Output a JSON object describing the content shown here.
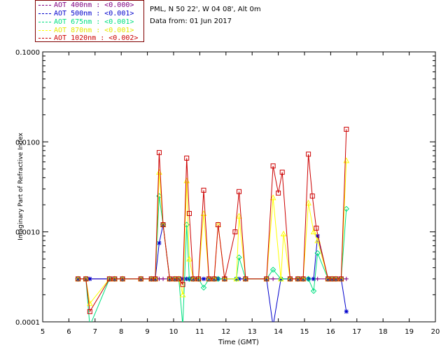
{
  "info": {
    "site": "PML, N 50 22', W 04 08', Alt 0m",
    "date": "Data from: 01 Jun 2017"
  },
  "colors": {
    "aot400": "#800080",
    "aot500": "#0000cc",
    "aot675": "#00e080",
    "aot870": "#ffff00",
    "aot1020": "#cc0000",
    "frame": "#000000"
  },
  "chart_data": {
    "type": "line",
    "xlabel": "Time (GMT)",
    "ylabel": "Imaginary Part of Refractive Index",
    "xlim": [
      5,
      20
    ],
    "ylim": [
      0.0001,
      0.1
    ],
    "yscale": "log",
    "xticks": [
      "5",
      "6",
      "7",
      "8",
      "9",
      "10",
      "11",
      "12",
      "13",
      "14",
      "15",
      "16",
      "17",
      "18",
      "19",
      "20"
    ],
    "yticks": [
      "0.0001",
      "0.0010",
      "0.0100",
      "0.1000"
    ],
    "legend_placement": "top-left, outside",
    "series": [
      {
        "name": "AOT  400nm : <0.000>",
        "color": "#800080",
        "marker": "plus",
        "x": [
          6.35,
          6.65,
          6.8,
          7.55,
          7.75,
          8.05,
          8.75,
          9.15,
          9.3,
          9.45,
          9.6,
          9.85,
          10.05,
          10.2,
          10.35,
          10.5,
          10.6,
          10.75,
          10.95,
          11.15,
          11.35,
          11.55,
          11.7,
          11.95,
          12.4,
          12.5,
          12.75,
          13.55,
          13.8,
          14.1,
          14.45,
          14.75,
          14.95,
          15.15,
          15.35,
          15.5,
          15.9,
          16.05,
          16.2,
          16.4,
          16.6
        ],
        "y": [
          0.0003,
          0.0003,
          0.0003,
          0.0003,
          0.0003,
          0.0003,
          0.0003,
          0.0003,
          0.0003,
          0.0003,
          0.0003,
          0.0003,
          0.0003,
          0.0003,
          0.0003,
          0.0003,
          0.0003,
          0.0003,
          0.0003,
          0.0003,
          0.0003,
          0.0003,
          0.0003,
          0.0003,
          0.0003,
          0.0003,
          0.0003,
          0.0003,
          0.0003,
          0.0003,
          0.0003,
          0.0003,
          0.0003,
          0.0003,
          0.0003,
          0.0003,
          0.0003,
          0.0003,
          0.0003,
          0.0003,
          0.0003
        ]
      },
      {
        "name": "AOT  500nm : <0.001>",
        "color": "#0000cc",
        "marker": "asterisk",
        "x": [
          6.35,
          6.65,
          6.8,
          7.55,
          7.75,
          8.05,
          8.75,
          9.15,
          9.3,
          9.45,
          9.6,
          9.85,
          10.05,
          10.2,
          10.35,
          10.5,
          10.6,
          10.75,
          10.95,
          11.15,
          11.35,
          11.55,
          11.7,
          11.95,
          12.4,
          12.5,
          12.75,
          13.55,
          13.8,
          14.1,
          14.45,
          14.75,
          14.95,
          15.15,
          15.35,
          15.5,
          15.9,
          16.05,
          16.2,
          16.4,
          16.6
        ],
        "y": [
          0.0003,
          0.0003,
          0.0003,
          0.0003,
          0.0003,
          0.0003,
          0.0003,
          0.0003,
          0.0003,
          0.00075,
          0.0012,
          0.0003,
          0.0003,
          0.0003,
          0.0003,
          0.0003,
          0.0003,
          0.0003,
          0.0003,
          0.0003,
          0.0003,
          0.0003,
          0.0003,
          0.0003,
          0.0003,
          0.0003,
          0.0003,
          0.0003,
          9e-05,
          0.0003,
          0.0003,
          0.0003,
          0.0003,
          0.0003,
          0.0003,
          0.0009,
          0.0003,
          0.0003,
          0.0003,
          0.0003,
          0.00013
        ]
      },
      {
        "name": "AOT  675nm : <0.001>",
        "color": "#00e080",
        "marker": "diamond",
        "x": [
          6.35,
          6.65,
          6.8,
          7.55,
          7.75,
          8.05,
          8.75,
          9.15,
          9.3,
          9.45,
          9.6,
          9.85,
          10.05,
          10.2,
          10.35,
          10.5,
          10.6,
          10.75,
          10.95,
          11.15,
          11.35,
          11.55,
          11.7,
          11.95,
          12.4,
          12.5,
          12.75,
          13.55,
          13.8,
          14.1,
          14.45,
          14.75,
          14.95,
          15.15,
          15.35,
          15.5,
          15.9,
          16.05,
          16.2,
          16.4,
          16.6
        ],
        "y": [
          0.0003,
          0.0003,
          9e-05,
          0.0003,
          0.0003,
          0.0003,
          0.0003,
          0.0003,
          0.0003,
          0.0025,
          0.0012,
          0.0003,
          0.0003,
          0.0003,
          9e-05,
          0.0012,
          0.0003,
          0.0003,
          0.0003,
          0.00024,
          0.0003,
          0.0003,
          0.0003,
          0.0003,
          0.0003,
          0.00052,
          0.0003,
          0.0003,
          0.00038,
          0.0003,
          0.0003,
          0.0003,
          0.0003,
          0.0003,
          0.00022,
          0.00058,
          0.0003,
          0.0003,
          0.0003,
          0.0003,
          0.0018
        ]
      },
      {
        "name": "AOT  870nm : <0.001>",
        "color": "#ffff00",
        "marker": "triangle",
        "x": [
          6.35,
          6.65,
          6.8,
          7.55,
          7.75,
          8.05,
          8.75,
          9.15,
          9.3,
          9.45,
          9.6,
          9.85,
          10.05,
          10.2,
          10.35,
          10.5,
          10.6,
          10.75,
          10.95,
          11.15,
          11.35,
          11.55,
          11.7,
          11.95,
          12.4,
          12.5,
          12.75,
          13.55,
          13.8,
          14.1,
          14.2,
          14.45,
          14.75,
          14.95,
          15.15,
          15.35,
          15.5,
          15.9,
          16.05,
          16.2,
          16.4,
          16.6
        ],
        "y": [
          0.0003,
          0.0003,
          0.00016,
          0.0003,
          0.0003,
          0.0003,
          0.0003,
          0.0003,
          0.0003,
          0.0046,
          0.0012,
          0.0003,
          0.0003,
          0.0003,
          0.0002,
          0.0037,
          0.0005,
          0.0003,
          0.0003,
          0.0016,
          0.0003,
          0.0003,
          0.0012,
          0.0003,
          0.0003,
          0.0015,
          0.0003,
          0.0003,
          0.0024,
          0.0003,
          0.00095,
          0.0003,
          0.0003,
          0.0003,
          0.0021,
          0.001,
          0.0008,
          0.0003,
          0.0003,
          0.0003,
          0.0003,
          0.0062
        ]
      },
      {
        "name": "AOT 1020nm : <0.002>",
        "color": "#cc0000",
        "marker": "square",
        "x": [
          6.35,
          6.65,
          6.8,
          7.55,
          7.75,
          8.05,
          8.75,
          9.15,
          9.3,
          9.45,
          9.6,
          9.85,
          10.05,
          10.2,
          10.35,
          10.5,
          10.6,
          10.75,
          10.95,
          11.15,
          11.35,
          11.55,
          11.7,
          11.95,
          12.35,
          12.5,
          12.75,
          13.55,
          13.8,
          14.0,
          14.15,
          14.45,
          14.75,
          14.95,
          15.15,
          15.3,
          15.45,
          15.9,
          16.05,
          16.2,
          16.4,
          16.6
        ],
        "y": [
          0.0003,
          0.0003,
          0.00013,
          0.0003,
          0.0003,
          0.0003,
          0.0003,
          0.0003,
          0.0003,
          0.0076,
          0.0012,
          0.0003,
          0.0003,
          0.0003,
          0.00026,
          0.0066,
          0.0016,
          0.0003,
          0.0003,
          0.0029,
          0.0003,
          0.0003,
          0.0012,
          0.0003,
          0.001,
          0.0028,
          0.0003,
          0.0003,
          0.0054,
          0.0027,
          0.0046,
          0.0003,
          0.0003,
          0.0003,
          0.0073,
          0.0025,
          0.0011,
          0.0003,
          0.0003,
          0.0003,
          0.0003,
          0.0138
        ]
      }
    ]
  }
}
